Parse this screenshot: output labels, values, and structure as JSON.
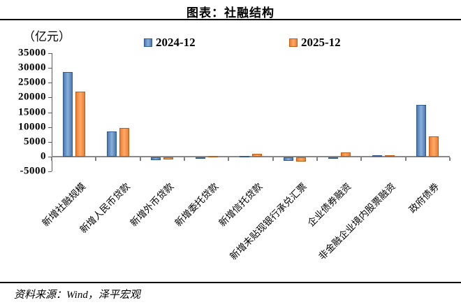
{
  "header": {
    "title": "图表：社融结构"
  },
  "unit_label": "（亿元）",
  "legend": [
    {
      "label": "2024-12",
      "color": "#4f81bd"
    },
    {
      "label": "2025-12",
      "color": "#f79646"
    }
  ],
  "source": "资料来源：Wind，泽平宏观",
  "chart_data": {
    "type": "bar",
    "title": "图表：社融结构",
    "ylabel": "（亿元）",
    "xlabel": "",
    "ylim": [
      -5000,
      35000
    ],
    "yticks": [
      35000,
      30000,
      25000,
      20000,
      15000,
      10000,
      5000,
      0,
      -5000
    ],
    "grid": false,
    "legend_position": "top",
    "categories": [
      "新增社融规模",
      "新增人民币贷款",
      "新增外币贷款",
      "新增委托贷款",
      "新增信托贷款",
      "新增未贴现银行承兑汇票",
      "企业债券融资",
      "非金融企业境内股票融资",
      "政府债券"
    ],
    "series": [
      {
        "name": "2024-12",
        "color": "#4f81bd",
        "values": [
          28500,
          8400,
          -900,
          -100,
          100,
          -1300,
          -150,
          480,
          17600
        ]
      },
      {
        "name": "2025-12",
        "color": "#f79646",
        "values": [
          22000,
          9600,
          -700,
          150,
          800,
          -1400,
          1300,
          500,
          6800
        ]
      }
    ]
  }
}
